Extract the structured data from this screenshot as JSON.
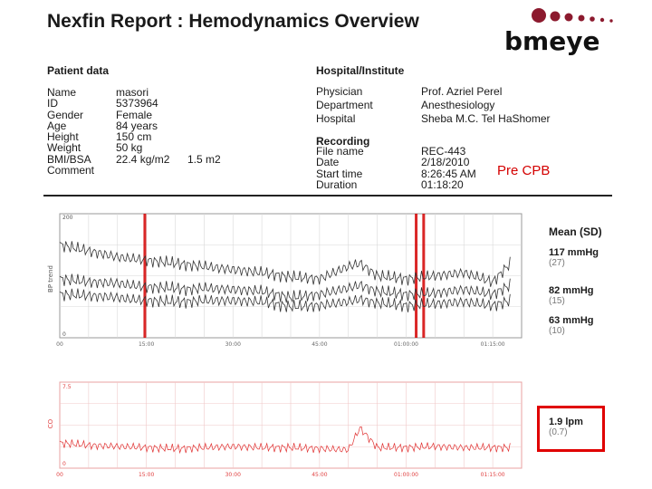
{
  "title": "Nexfin Report : Hemodynamics Overview",
  "logo": {
    "text": "bmeye",
    "dot_color": "#8c1a2e"
  },
  "patient": {
    "heading": "Patient data",
    "rows": [
      {
        "label": "Name",
        "value": "masori"
      },
      {
        "label": "ID",
        "value": "5373964"
      },
      {
        "label": "Gender",
        "value": "Female"
      },
      {
        "label": "Age",
        "value": "84 years"
      },
      {
        "label": "Height",
        "value": "150 cm"
      },
      {
        "label": "Weight",
        "value": "50 kg"
      },
      {
        "label": "BMI/BSA",
        "value": "22.4 kg/m2",
        "value2": "1.5 m2"
      },
      {
        "label": "Comment",
        "value": ""
      }
    ]
  },
  "hospital": {
    "heading": "Hospital/Institute",
    "rows": [
      {
        "label": "Physician",
        "value": "Prof. Azriel Perel"
      },
      {
        "label": "Department",
        "value": "Anesthesiology"
      },
      {
        "label": "Hospital",
        "value": "Sheba M.C. Tel HaShomer"
      }
    ]
  },
  "recording": {
    "heading": "Recording",
    "rows": [
      {
        "label": "File name",
        "value": "REC-443"
      },
      {
        "label": "Date",
        "value": "2/18/2010"
      },
      {
        "label": "Start time",
        "value": "8:26:45 AM"
      },
      {
        "label": "Duration",
        "value": "01:18:20"
      }
    ]
  },
  "annotation": "Pre CPB",
  "bp_panel": {
    "stats_heading": "Mean (SD)",
    "stats": [
      {
        "value": "117 mmHg",
        "sd": "(27)"
      },
      {
        "value": "82 mmHg",
        "sd": "(15)"
      },
      {
        "value": "63 mmHg",
        "sd": "(10)"
      }
    ]
  },
  "co_panel": {
    "stats": [
      {
        "value": "1.9 lpm",
        "sd": "(0.7)"
      }
    ]
  },
  "chart_data": [
    {
      "type": "line",
      "ylabel": "BP trend",
      "ylim": [
        0,
        200
      ],
      "y_ticks": [
        "200",
        "0"
      ],
      "x_tick_labels": [
        "00",
        "15:00",
        "30:00",
        "45:00",
        "01:00:00",
        "01:15:00"
      ],
      "x": [
        0,
        5,
        10,
        12,
        15,
        20,
        22,
        25,
        30,
        35,
        40,
        45,
        50,
        52,
        55,
        60,
        65,
        70,
        75,
        78
      ],
      "series": [
        {
          "color": "#333333",
          "values": [
            150,
            140,
            130,
            128,
            125,
            120,
            118,
            115,
            110,
            105,
            98,
            95,
            115,
            120,
            100,
            95,
            100,
            105,
            90,
            120
          ]
        },
        {
          "color": "#333333",
          "values": [
            95,
            90,
            88,
            85,
            82,
            80,
            78,
            80,
            78,
            75,
            65,
            70,
            80,
            85,
            75,
            70,
            72,
            78,
            70,
            85
          ]
        },
        {
          "color": "#333333",
          "values": [
            70,
            68,
            65,
            62,
            60,
            58,
            58,
            60,
            60,
            58,
            50,
            52,
            58,
            62,
            56,
            52,
            55,
            58,
            52,
            60
          ]
        }
      ],
      "marker_color": "#d40000"
    },
    {
      "type": "line",
      "ylabel": "CO",
      "ylim": [
        0,
        7.5
      ],
      "y_ticks": [
        "7.5",
        "0"
      ],
      "x_tick_labels": [
        "00",
        "15:00",
        "30:00",
        "45:00",
        "01:00:00",
        "01:15:00"
      ],
      "x": [
        0,
        5,
        10,
        15,
        20,
        25,
        30,
        35,
        40,
        45,
        50,
        52,
        55,
        60,
        65,
        70,
        75,
        78
      ],
      "series": [
        {
          "color": "#e03030",
          "values": [
            2.2,
            2.0,
            1.9,
            1.8,
            1.7,
            1.8,
            1.9,
            1.8,
            1.8,
            1.7,
            1.6,
            3.5,
            1.8,
            1.8,
            1.9,
            1.8,
            1.8,
            1.8
          ]
        }
      ]
    }
  ]
}
